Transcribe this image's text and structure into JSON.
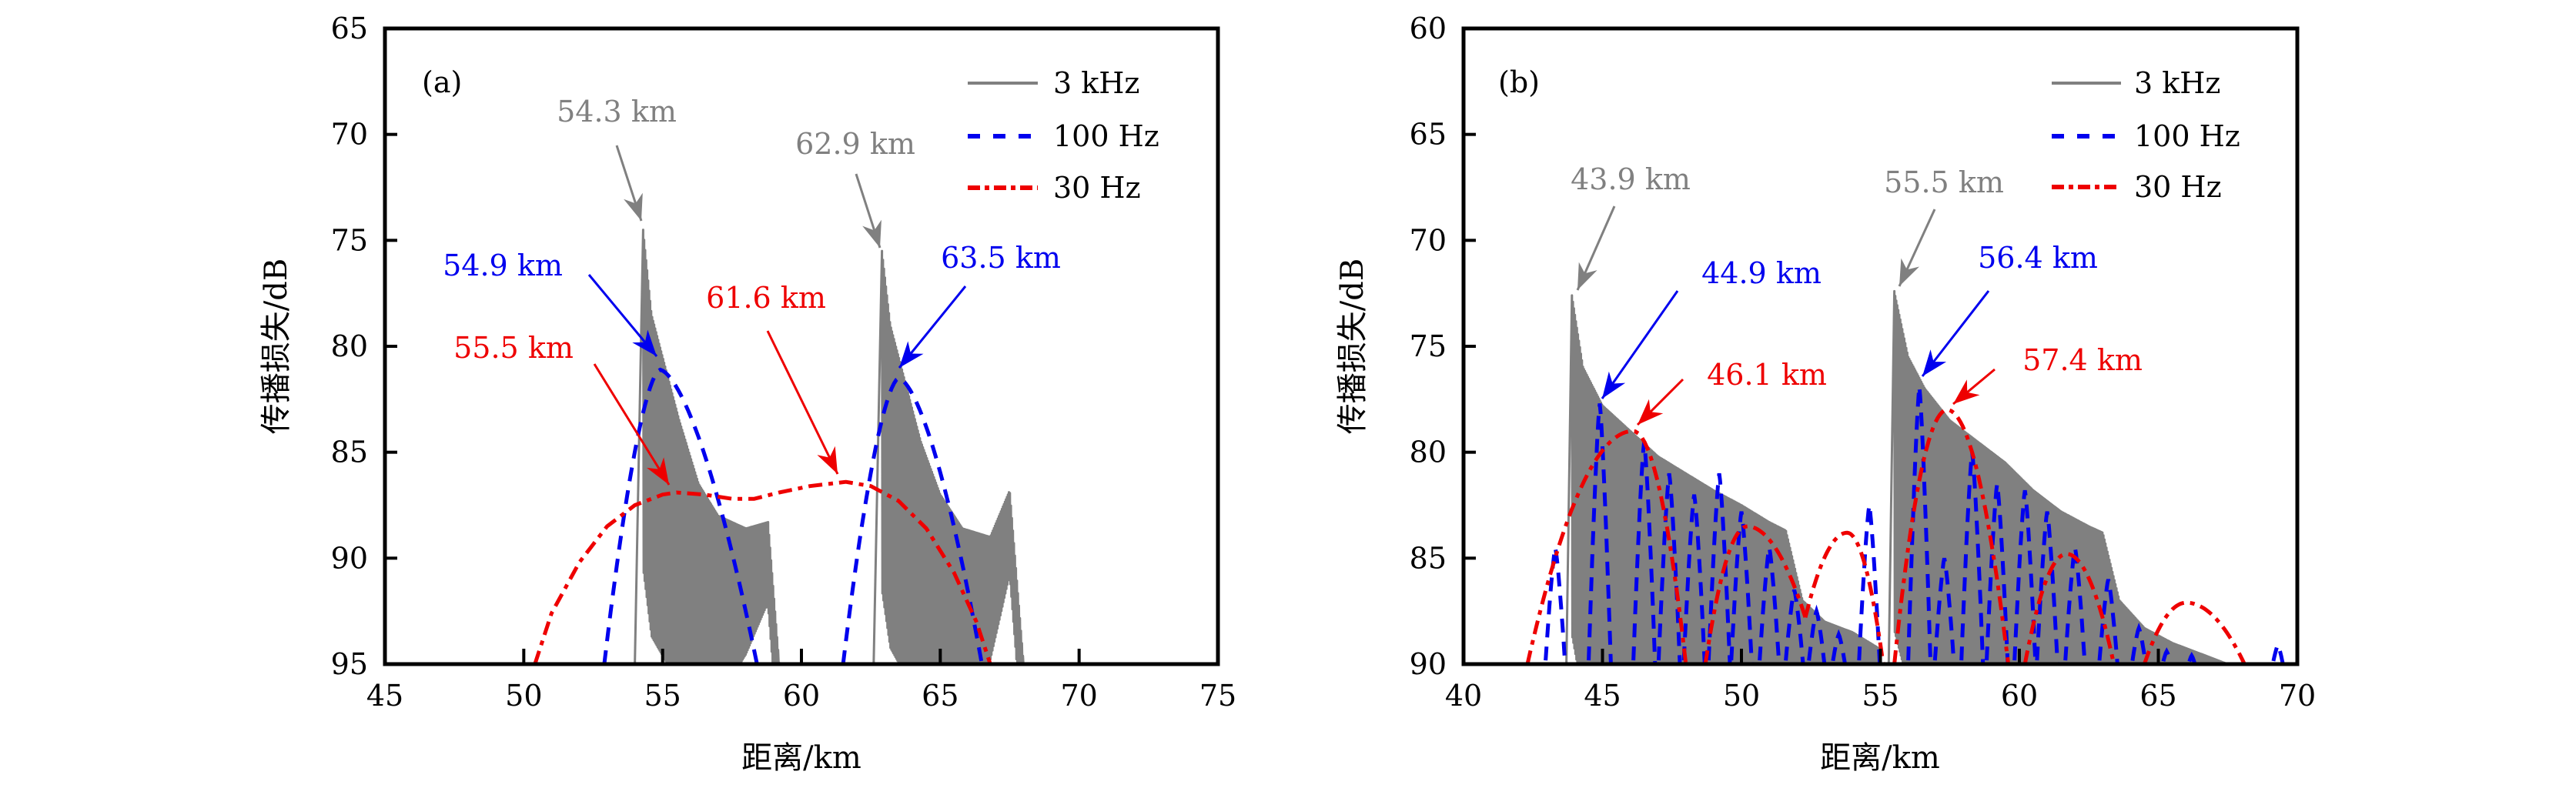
{
  "colors": {
    "3kHz": "#808080",
    "100Hz": "#0000ee",
    "30Hz": "#ee0000",
    "axis": "#000000"
  },
  "chart_data": [
    {
      "id": "a",
      "type": "line",
      "panel_label": "(a)",
      "xlabel": "距离/km",
      "ylabel": "传播损失/dB",
      "xlim": [
        45,
        75
      ],
      "ylim": [
        95,
        65
      ],
      "y_inverted": true,
      "xticks": [
        "45",
        "50",
        "55",
        "60",
        "65",
        "70",
        "75"
      ],
      "yticks": [
        "65",
        "70",
        "75",
        "80",
        "85",
        "90",
        "95"
      ],
      "legend": {
        "position": "top-right",
        "entries": [
          "3 kHz",
          "100 Hz",
          "30 Hz"
        ]
      },
      "series": [
        {
          "name": "3 kHz",
          "style": "solid",
          "color_key": "3kHz",
          "bursts": [
            {
              "start": 54.0,
              "peak_x": 54.3,
              "peak_db": 74.5,
              "envelope": [
                [
                  54.3,
                  74.5
                ],
                [
                  54.6,
                  78.5
                ],
                [
                  55.0,
                  80.5
                ],
                [
                  55.6,
                  83.5
                ],
                [
                  56.3,
                  86.5
                ],
                [
                  57.0,
                  88.0
                ],
                [
                  58.0,
                  88.6
                ],
                [
                  58.8,
                  88.3
                ],
                [
                  59.2,
                  95
                ]
              ]
            },
            {
              "start": 62.6,
              "peak_x": 62.9,
              "peak_db": 75.5,
              "envelope": [
                [
                  62.9,
                  75.5
                ],
                [
                  63.2,
                  79.0
                ],
                [
                  63.6,
                  81.0
                ],
                [
                  64.3,
                  84.5
                ],
                [
                  65.0,
                  87.0
                ],
                [
                  65.8,
                  88.6
                ],
                [
                  66.8,
                  89.0
                ],
                [
                  67.5,
                  86.8
                ],
                [
                  68.0,
                  95
                ]
              ]
            }
          ]
        },
        {
          "name": "100 Hz",
          "style": "dashed",
          "color_key": "100Hz",
          "lobes": [
            {
              "x0": 52.9,
              "peak_x": 54.9,
              "peak_db": 81.1,
              "x1": 58.4
            },
            {
              "x0": 61.5,
              "peak_x": 63.5,
              "peak_db": 81.5,
              "x1": 66.5
            }
          ]
        },
        {
          "name": "30 Hz",
          "style": "dashdot",
          "color_key": "30Hz",
          "points": [
            [
              50.4,
              95
            ],
            [
              51.0,
              92.6
            ],
            [
              52.0,
              90.2
            ],
            [
              53.0,
              88.5
            ],
            [
              54.0,
              87.5
            ],
            [
              55.0,
              87.0
            ],
            [
              55.5,
              86.9
            ],
            [
              56.5,
              87.0
            ],
            [
              57.5,
              87.2
            ],
            [
              58.3,
              87.2
            ],
            [
              59.2,
              86.9
            ],
            [
              60.3,
              86.6
            ],
            [
              61.6,
              86.4
            ],
            [
              62.5,
              86.6
            ],
            [
              63.5,
              87.3
            ],
            [
              64.5,
              88.6
            ],
            [
              65.5,
              90.7
            ],
            [
              66.3,
              93.0
            ],
            [
              66.8,
              95
            ]
          ]
        }
      ],
      "annotations": [
        {
          "text": "54.3 km",
          "color_key": "3kHz",
          "target_x": 54.3,
          "target_db": 74.5
        },
        {
          "text": "62.9 km",
          "color_key": "3kHz",
          "target_x": 62.9,
          "target_db": 75.5
        },
        {
          "text": "54.9 km",
          "color_key": "100Hz",
          "target_x": 54.9,
          "target_db": 81.1
        },
        {
          "text": "63.5 km",
          "color_key": "100Hz",
          "target_x": 63.5,
          "target_db": 81.5
        },
        {
          "text": "55.5 km",
          "color_key": "30Hz",
          "target_x": 55.5,
          "target_db": 86.9
        },
        {
          "text": "61.6 km",
          "color_key": "30Hz",
          "target_x": 61.6,
          "target_db": 86.4
        }
      ]
    },
    {
      "id": "b",
      "type": "line",
      "panel_label": "(b)",
      "xlabel": "距离/km",
      "ylabel": "传播损失/dB",
      "xlim": [
        40,
        70
      ],
      "ylim": [
        90,
        60
      ],
      "y_inverted": true,
      "xticks": [
        "40",
        "45",
        "50",
        "55",
        "60",
        "65",
        "70"
      ],
      "yticks": [
        "60",
        "65",
        "70",
        "75",
        "80",
        "85",
        "90"
      ],
      "legend": {
        "position": "top-right",
        "entries": [
          "3 kHz",
          "100 Hz",
          "30 Hz"
        ]
      },
      "series": [
        {
          "name": "3 kHz",
          "style": "solid",
          "color_key": "3kHz",
          "bursts": [
            {
              "start": 43.7,
              "peak_x": 43.9,
              "peak_db": 72.6,
              "envelope": [
                [
                  43.9,
                  72.6
                ],
                [
                  44.3,
                  76.0
                ],
                [
                  45.0,
                  77.8
                ],
                [
                  46.0,
                  79.0
                ],
                [
                  47.0,
                  80.2
                ],
                [
                  48.0,
                  81.0
                ],
                [
                  49.0,
                  81.8
                ],
                [
                  50.0,
                  82.5
                ],
                [
                  51.0,
                  83.3
                ],
                [
                  51.6,
                  83.7
                ],
                [
                  52.2,
                  87.0
                ],
                [
                  53.0,
                  88.0
                ],
                [
                  54.0,
                  88.5
                ],
                [
                  55.0,
                  89.3
                ]
              ]
            },
            {
              "start": 55.3,
              "peak_x": 55.5,
              "peak_db": 72.4,
              "envelope": [
                [
                  55.5,
                  72.4
                ],
                [
                  56.0,
                  75.5
                ],
                [
                  56.6,
                  77.0
                ],
                [
                  57.5,
                  78.5
                ],
                [
                  58.5,
                  79.5
                ],
                [
                  59.5,
                  80.5
                ],
                [
                  60.5,
                  81.8
                ],
                [
                  61.5,
                  82.8
                ],
                [
                  62.5,
                  83.5
                ],
                [
                  63.0,
                  83.8
                ],
                [
                  63.6,
                  87.0
                ],
                [
                  64.5,
                  88.3
                ],
                [
                  65.5,
                  89.0
                ],
                [
                  66.5,
                  89.5
                ],
                [
                  67.5,
                  90
                ]
              ]
            }
          ]
        },
        {
          "name": "100 Hz",
          "style": "dashed",
          "color_key": "100Hz",
          "lobe_peaks": [
            [
              43.3,
              84.5
            ],
            [
              44.9,
              77.7
            ],
            [
              46.5,
              79.5
            ],
            [
              47.4,
              81.0
            ],
            [
              48.3,
              82.0
            ],
            [
              49.2,
              81.0
            ],
            [
              50.0,
              82.8
            ],
            [
              51.0,
              84.5
            ],
            [
              51.9,
              86.5
            ],
            [
              52.7,
              87.5
            ],
            [
              53.5,
              88.6
            ],
            [
              54.6,
              82.5
            ],
            [
              56.4,
              76.9
            ],
            [
              57.3,
              85.0
            ],
            [
              58.3,
              80.0
            ],
            [
              59.2,
              81.5
            ],
            [
              60.2,
              81.8
            ],
            [
              61.0,
              82.8
            ],
            [
              62.0,
              84.5
            ],
            [
              63.2,
              86.0
            ],
            [
              64.3,
              88.3
            ],
            [
              65.3,
              89.4
            ],
            [
              66.2,
              89.6
            ],
            [
              69.3,
              89.1
            ]
          ],
          "lobe_half_width": 0.45
        },
        {
          "name": "30 Hz",
          "style": "dashdot",
          "color_key": "30Hz",
          "arches": [
            {
              "x0": 42.3,
              "peak_x": 46.1,
              "peak_db": 79.0,
              "x1": 48.0
            },
            {
              "x0": 48.7,
              "peak_x": 50.2,
              "peak_db": 83.5,
              "x1": 52.3,
              "end_db": 87.8
            },
            {
              "x0": 52.3,
              "peak_x": 53.8,
              "peak_db": 83.8,
              "x1": 55.1,
              "start_db": 87.8
            },
            {
              "x0": 55.5,
              "peak_x": 57.4,
              "peak_db": 78.0,
              "x1": 59.6
            },
            {
              "x0": 60.2,
              "peak_x": 61.7,
              "peak_db": 84.8,
              "x1": 63.4
            },
            {
              "x0": 64.5,
              "peak_x": 66.0,
              "peak_db": 87.1,
              "x1": 68.1
            }
          ]
        }
      ],
      "annotations": [
        {
          "text": "43.9 km",
          "color_key": "3kHz",
          "target_x": 43.9,
          "target_db": 72.6
        },
        {
          "text": "55.5 km",
          "color_key": "3kHz",
          "target_x": 55.5,
          "target_db": 72.4
        },
        {
          "text": "44.9 km",
          "color_key": "100Hz",
          "target_x": 44.9,
          "target_db": 77.7
        },
        {
          "text": "56.4 km",
          "color_key": "100Hz",
          "target_x": 56.4,
          "target_db": 76.9
        },
        {
          "text": "46.1 km",
          "color_key": "30Hz",
          "target_x": 46.1,
          "target_db": 79.0
        },
        {
          "text": "57.4 km",
          "color_key": "30Hz",
          "target_x": 57.4,
          "target_db": 78.0
        }
      ]
    }
  ]
}
